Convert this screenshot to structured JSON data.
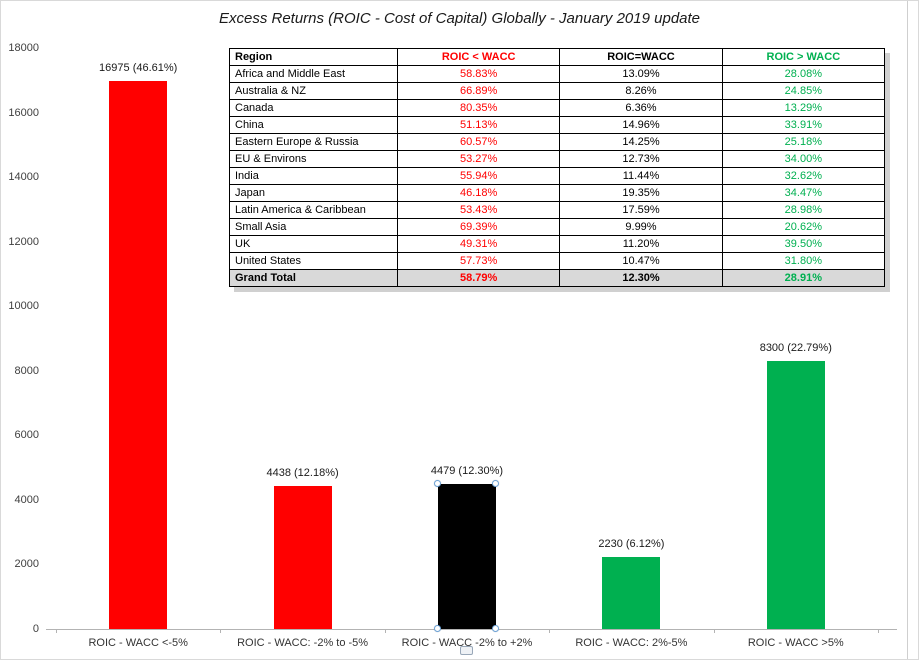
{
  "chart_data": {
    "type": "bar",
    "title": "Excess Returns (ROIC - Cost of Capital) Globally - January 2019 update",
    "categories": [
      "ROIC - WACC <-5%",
      "ROIC - WACC: -2% to -5%",
      "ROIC - WACC -2% to +2%",
      "ROIC - WACC: 2%-5%",
      "ROIC - WACC >5%"
    ],
    "values": [
      16975,
      4438,
      4479,
      2230,
      8300
    ],
    "value_labels": [
      "16975 (46.61%)",
      "4438 (12.18%)",
      "4479 (12.30%)",
      "2230 (6.12%)",
      "8300 (22.79%)"
    ],
    "bar_colors": [
      "#FF0000",
      "#FF0000",
      "#000000",
      "#00B050",
      "#00B050"
    ],
    "xlabel": "",
    "ylabel": "",
    "ylim": [
      0,
      18000
    ],
    "yticks": [
      0,
      2000,
      4000,
      6000,
      8000,
      10000,
      12000,
      14000,
      16000,
      18000
    ],
    "grid": false,
    "legend_position": "none",
    "selected_index": 2
  },
  "table": {
    "headers": [
      "Region",
      "ROIC < WACC",
      "ROIC=WACC",
      "ROIC > WACC"
    ],
    "header_colors": [
      "#000000",
      "#FF0000",
      "#000000",
      "#00B050"
    ],
    "value_colors": [
      "#FF0000",
      "#000000",
      "#00B050"
    ],
    "rows": [
      [
        "Africa and Middle East",
        "58.83%",
        "13.09%",
        "28.08%"
      ],
      [
        "Australia & NZ",
        "66.89%",
        "8.26%",
        "24.85%"
      ],
      [
        "Canada",
        "80.35%",
        "6.36%",
        "13.29%"
      ],
      [
        "China",
        "51.13%",
        "14.96%",
        "33.91%"
      ],
      [
        "Eastern Europe & Russia",
        "60.57%",
        "14.25%",
        "25.18%"
      ],
      [
        "EU & Environs",
        "53.27%",
        "12.73%",
        "34.00%"
      ],
      [
        "India",
        "55.94%",
        "11.44%",
        "32.62%"
      ],
      [
        "Japan",
        "46.18%",
        "19.35%",
        "34.47%"
      ],
      [
        "Latin America & Caribbean",
        "53.43%",
        "17.59%",
        "28.98%"
      ],
      [
        "Small Asia",
        "69.39%",
        "9.99%",
        "20.62%"
      ],
      [
        "UK",
        "49.31%",
        "11.20%",
        "39.50%"
      ],
      [
        "United States",
        "57.73%",
        "10.47%",
        "31.80%"
      ]
    ],
    "total_row": [
      "Grand Total",
      "58.79%",
      "12.30%",
      "28.91%"
    ]
  }
}
